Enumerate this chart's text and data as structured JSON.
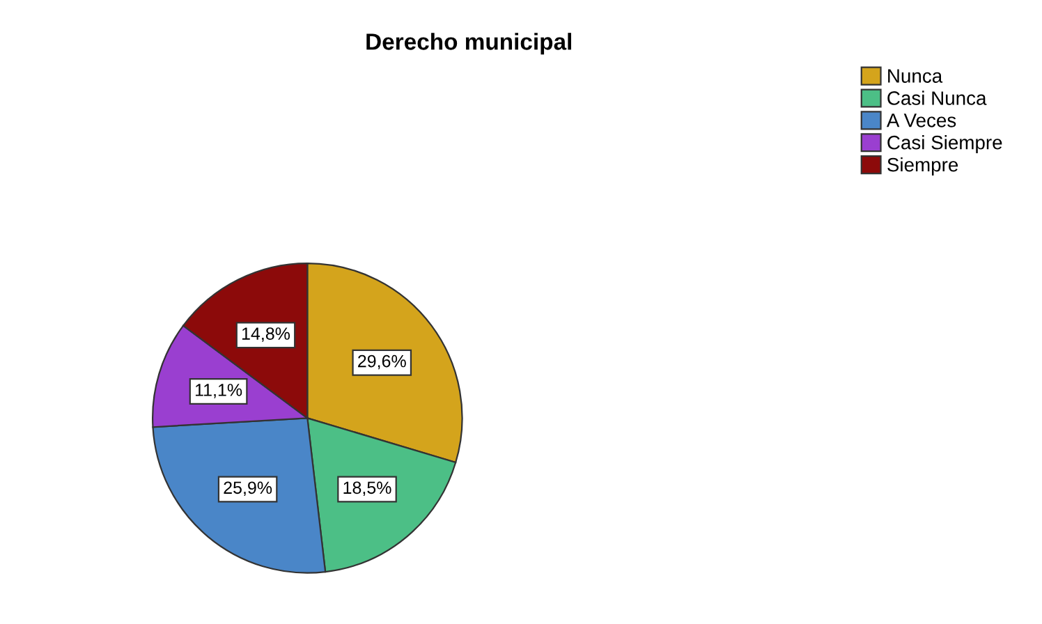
{
  "chart_data": {
    "type": "pie",
    "title": "Derecho municipal",
    "categories": [
      "Nunca",
      "Casi Nunca",
      "A Veces",
      "Casi Siempre",
      "Siempre"
    ],
    "values": [
      29.6,
      18.5,
      25.9,
      11.1,
      14.8
    ],
    "value_labels": [
      "29,6%",
      "18,5%",
      "25,9%",
      "11,1%",
      "14,8%"
    ],
    "colors": [
      "#d4a41c",
      "#4cbf86",
      "#4a86c8",
      "#9a3fd0",
      "#8c0a0a"
    ],
    "legend": "top right"
  }
}
